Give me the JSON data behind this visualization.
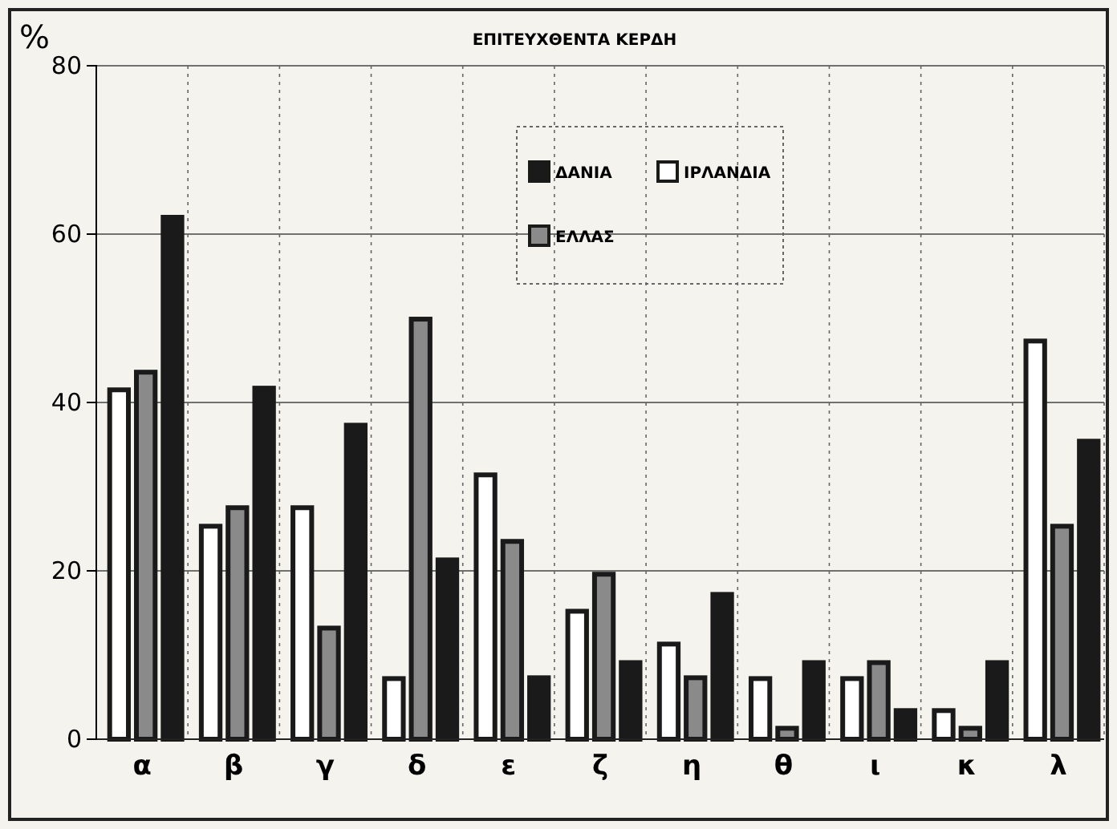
{
  "chart_data": {
    "type": "bar",
    "title": "ΕΠΙΤΕΥΧΘΕΝΤΑ ΚΕΡΔΗ",
    "ylabel": "%",
    "categories": [
      "α",
      "β",
      "γ",
      "δ",
      "ε",
      "ζ",
      "η",
      "θ",
      "ι",
      "κ",
      "λ"
    ],
    "series": [
      {
        "name": "ΙΡΛΑΝΔΙΑ",
        "color": "#ffffff",
        "values": [
          41.5,
          25.3,
          27.5,
          7.2,
          31.4,
          15.2,
          11.3,
          7.2,
          7.2,
          3.4,
          47.3
        ]
      },
      {
        "name": "ΕΛΛΑΣ",
        "color": "#8a8a8a",
        "values": [
          43.6,
          27.5,
          13.2,
          49.9,
          23.5,
          19.6,
          7.3,
          1.3,
          9.1,
          1.3,
          25.3
        ]
      },
      {
        "name": "ΔΑΝΙΑ",
        "color": "#1a1a1a",
        "values": [
          62,
          41.7,
          37.3,
          21.3,
          7.3,
          9.1,
          17.2,
          9.1,
          3.4,
          9.1,
          35.4
        ]
      }
    ],
    "ylim": [
      0,
      80
    ],
    "yticks": [
      0,
      20,
      40,
      60,
      80
    ],
    "grid": true,
    "legend": "top right"
  }
}
